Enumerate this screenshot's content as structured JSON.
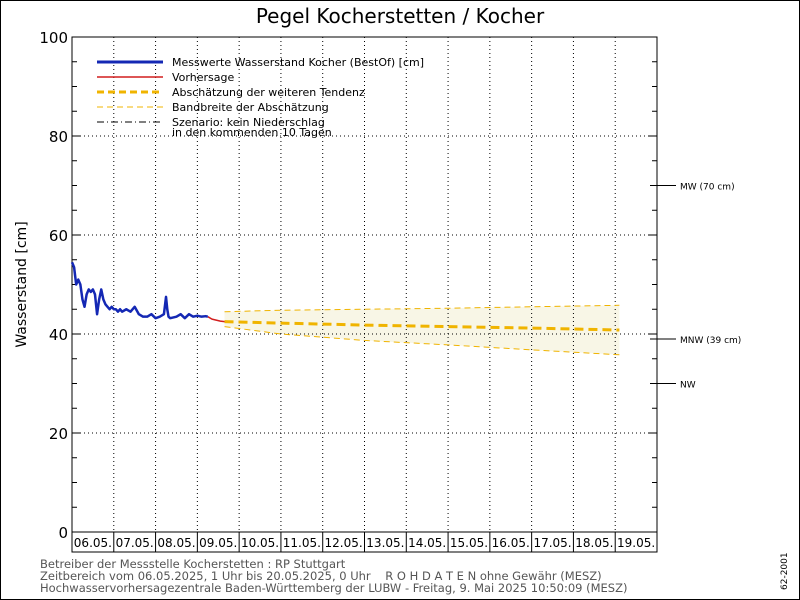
{
  "title": "Pegel Kocherstetten / Kocher",
  "chart_data": {
    "type": "line",
    "ylabel": "Wasserstand [cm]",
    "ylim": [
      0,
      100
    ],
    "y_ticks": [
      0,
      20,
      40,
      60,
      80,
      100
    ],
    "x_categories": [
      "06.05.",
      "07.05.",
      "08.05.",
      "09.05.",
      "10.05.",
      "11.05.",
      "12.05.",
      "13.05.",
      "14.05.",
      "15.05.",
      "16.05.",
      "17.05.",
      "18.05.",
      "19.05."
    ],
    "x_range_days": [
      0,
      14
    ],
    "grid": true,
    "legend_position": "top-left",
    "legend": [
      {
        "label": "Messwerte Wasserstand Kocher  (BestOf)   [cm]",
        "style": "solid",
        "color": "#1428b4"
      },
      {
        "label": "Vorhersage",
        "style": "solid",
        "color": "#d21e1e"
      },
      {
        "label": "Abschätzung der weiteren Tendenz",
        "style": "dashed-thick",
        "color": "#f0b400"
      },
      {
        "label": "Bandbreite der Abschätzung",
        "style": "dashed-thin",
        "color": "#f0b400"
      },
      {
        "label": "Szenario: kein Niederschlag",
        "label2": "in den kommenden 10 Tagen",
        "style": "dashdot",
        "color": "#000000"
      }
    ],
    "reference_lines": [
      {
        "label": "MW (70 cm)",
        "value": 70
      },
      {
        "label": "MNW (39 cm)",
        "value": 39
      },
      {
        "label": "NW",
        "value": 30
      }
    ],
    "series": [
      {
        "name": "Messwerte Wasserstand Kocher",
        "color": "#1428b4",
        "x": [
          0.0,
          0.05,
          0.1,
          0.15,
          0.2,
          0.25,
          0.3,
          0.35,
          0.4,
          0.45,
          0.5,
          0.55,
          0.6,
          0.65,
          0.7,
          0.75,
          0.8,
          0.85,
          0.9,
          0.95,
          1.0,
          1.05,
          1.1,
          1.15,
          1.2,
          1.3,
          1.4,
          1.5,
          1.6,
          1.7,
          1.8,
          1.9,
          2.0,
          2.1,
          2.2,
          2.25,
          2.28,
          2.31,
          2.35,
          2.5,
          2.6,
          2.7,
          2.8,
          2.9,
          3.0,
          3.1,
          3.2,
          3.25
        ],
        "y": [
          54.5,
          53.5,
          50,
          51,
          50,
          47,
          45.5,
          48,
          49,
          48.5,
          49,
          48,
          44,
          47,
          49,
          47,
          46,
          45.5,
          45,
          45.5,
          45,
          45,
          44.5,
          45,
          44.5,
          45,
          44.5,
          45.5,
          44,
          43.5,
          43.5,
          44,
          43.2,
          43.5,
          44,
          47.5,
          45,
          43.5,
          43.2,
          43.5,
          44,
          43.2,
          44,
          43.5,
          43.7,
          43.5,
          43.6,
          43.5
        ]
      },
      {
        "name": "Vorhersage",
        "color": "#d21e1e",
        "x": [
          3.25,
          3.35,
          3.45,
          3.55,
          3.65
        ],
        "y": [
          43.5,
          43.0,
          42.8,
          42.6,
          42.5
        ]
      },
      {
        "name": "Abschätzung der weiteren Tendenz",
        "color": "#f0b400",
        "x": [
          3.65,
          5,
          7,
          9,
          11,
          13.1
        ],
        "y": [
          42.5,
          42.2,
          41.8,
          41.5,
          41.2,
          40.8
        ]
      },
      {
        "name": "Bandbreite der Abschätzung (oben)",
        "color": "#f0b400",
        "x": [
          3.65,
          5,
          7,
          9,
          11,
          13.1
        ],
        "y": [
          44.5,
          44.8,
          45.0,
          45.2,
          45.5,
          45.8
        ]
      },
      {
        "name": "Bandbreite der Abschätzung (unten)",
        "color": "#f0b400",
        "x": [
          3.65,
          5,
          7,
          9,
          11,
          13.1
        ],
        "y": [
          41.5,
          40.0,
          38.7,
          37.8,
          36.8,
          35.8
        ]
      }
    ]
  },
  "footer": {
    "line1": "Betreiber der Messstelle Kocherstetten : RP Stuttgart",
    "line2": "Zeitbereich vom 06.05.2025, 1 Uhr bis 20.05.2025, 0 Uhr    R O H D A T E N ohne Gewähr (MESZ)",
    "line3": "Hochwasservorhersagezentrale Baden-Württemberg der LUBW - Freitag, 9. Mai 2025 10:50:09 (MESZ)",
    "code": "62-2001"
  }
}
